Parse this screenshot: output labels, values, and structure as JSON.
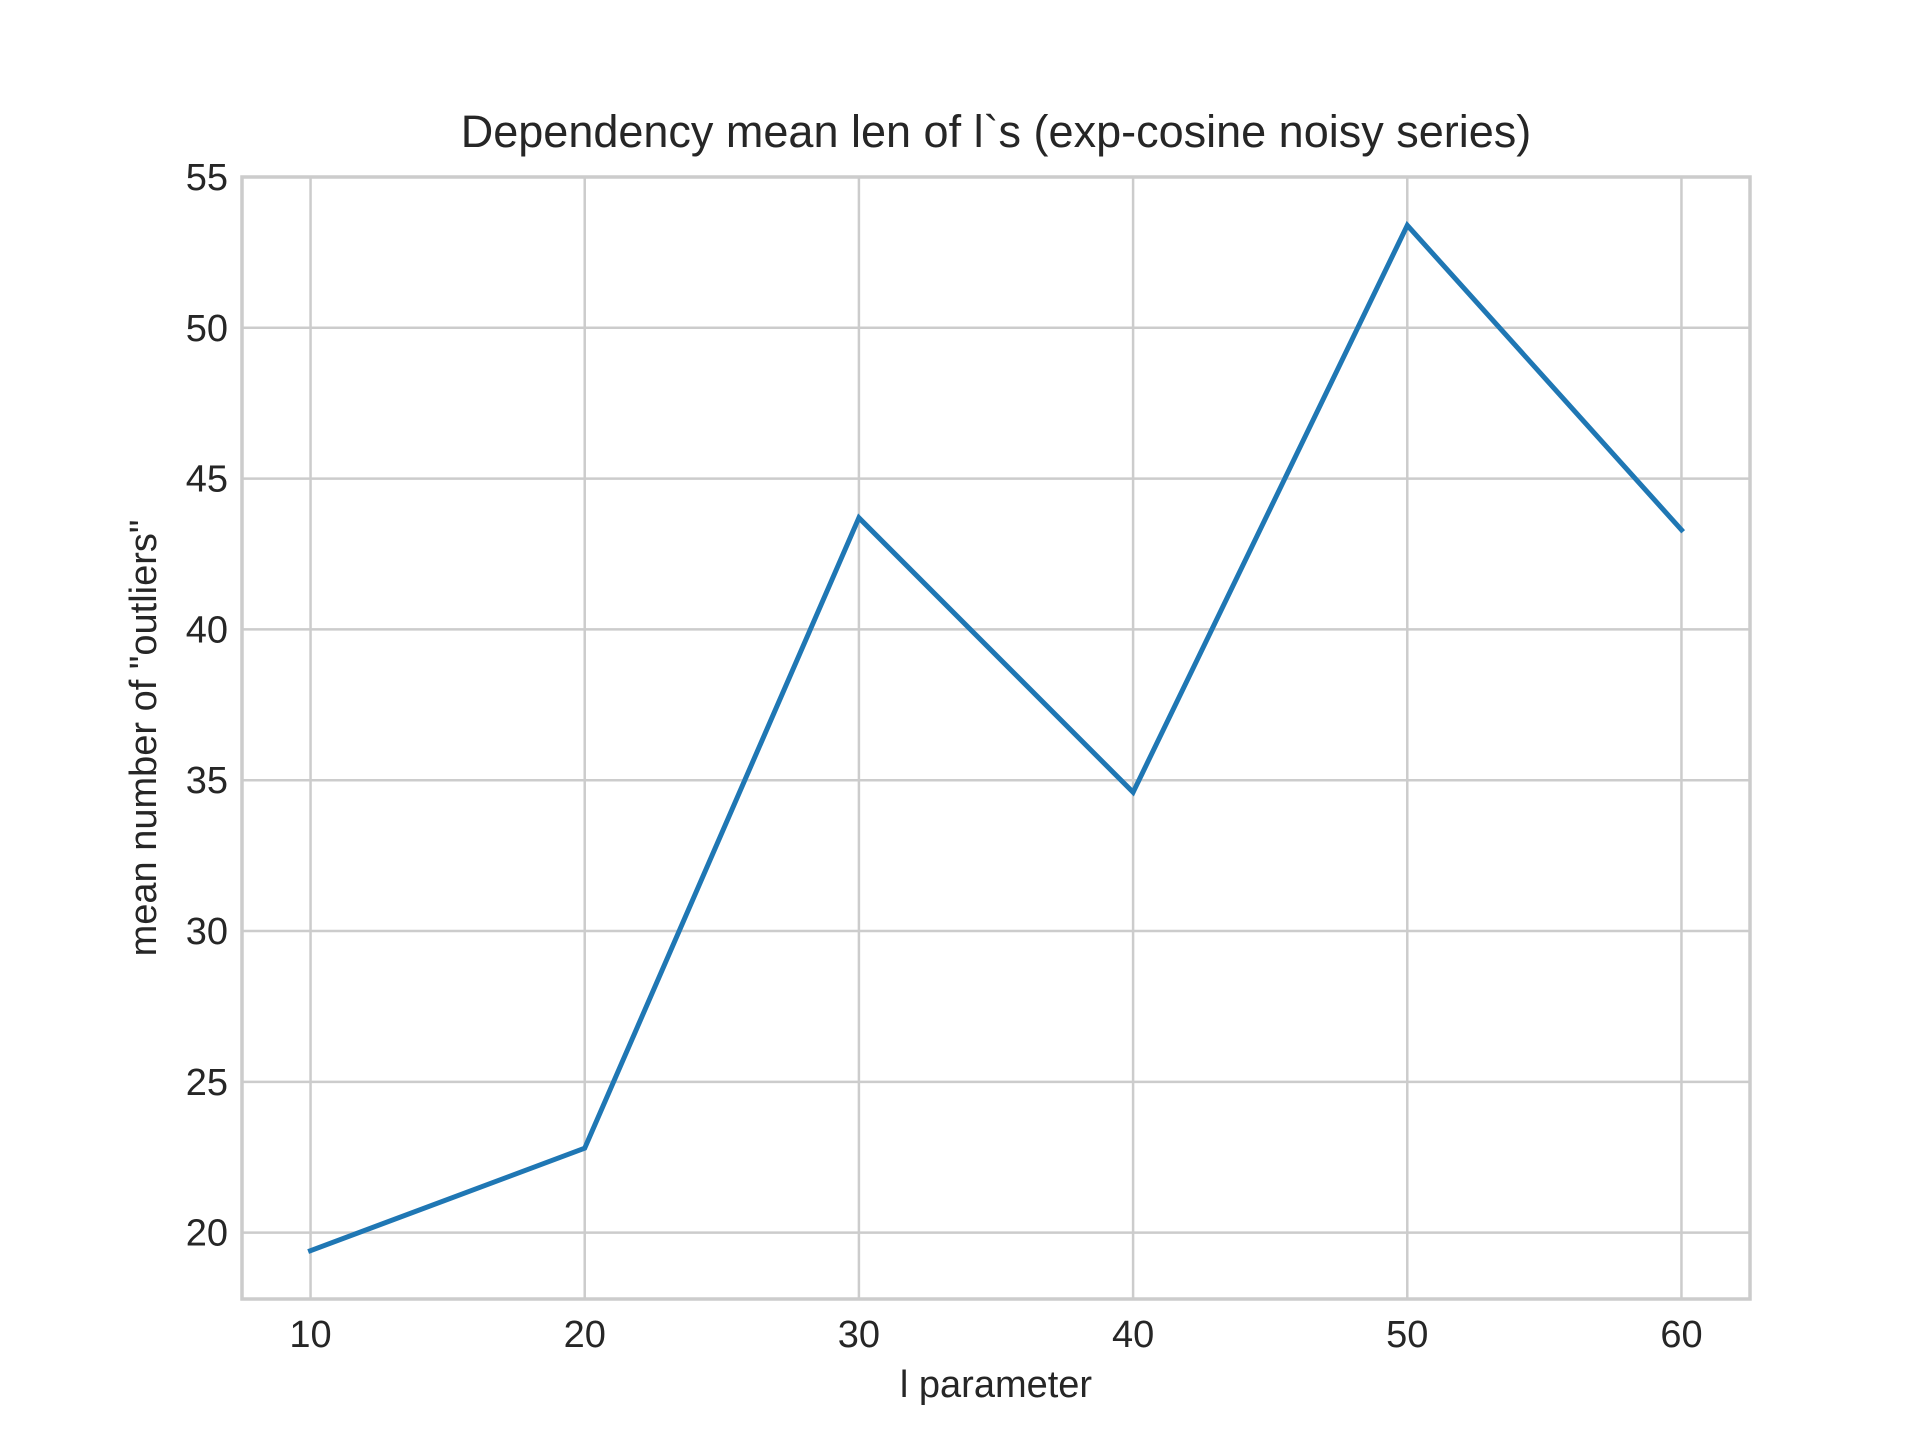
{
  "chart_data": {
    "type": "line",
    "title": "Dependency mean len of l`s (exp-cosine noisy series)",
    "xlabel": "l parameter",
    "ylabel": "mean number of \"outliers\"",
    "x": [
      10,
      20,
      30,
      40,
      50,
      60
    ],
    "series": [
      {
        "values": [
          19.4,
          22.8,
          43.7,
          34.6,
          53.4,
          43.3
        ],
        "color": "#1f77b4"
      }
    ],
    "x_ticks": [
      10,
      20,
      30,
      40,
      50,
      60
    ],
    "y_ticks": [
      20,
      25,
      30,
      35,
      40,
      45,
      50,
      55
    ],
    "xlim": [
      7.5,
      62.5
    ],
    "ylim": [
      17.8,
      55.0
    ],
    "grid": true,
    "style": {
      "grid_color": "#cccccc",
      "text_color": "#262626",
      "background": "#ffffff"
    }
  }
}
